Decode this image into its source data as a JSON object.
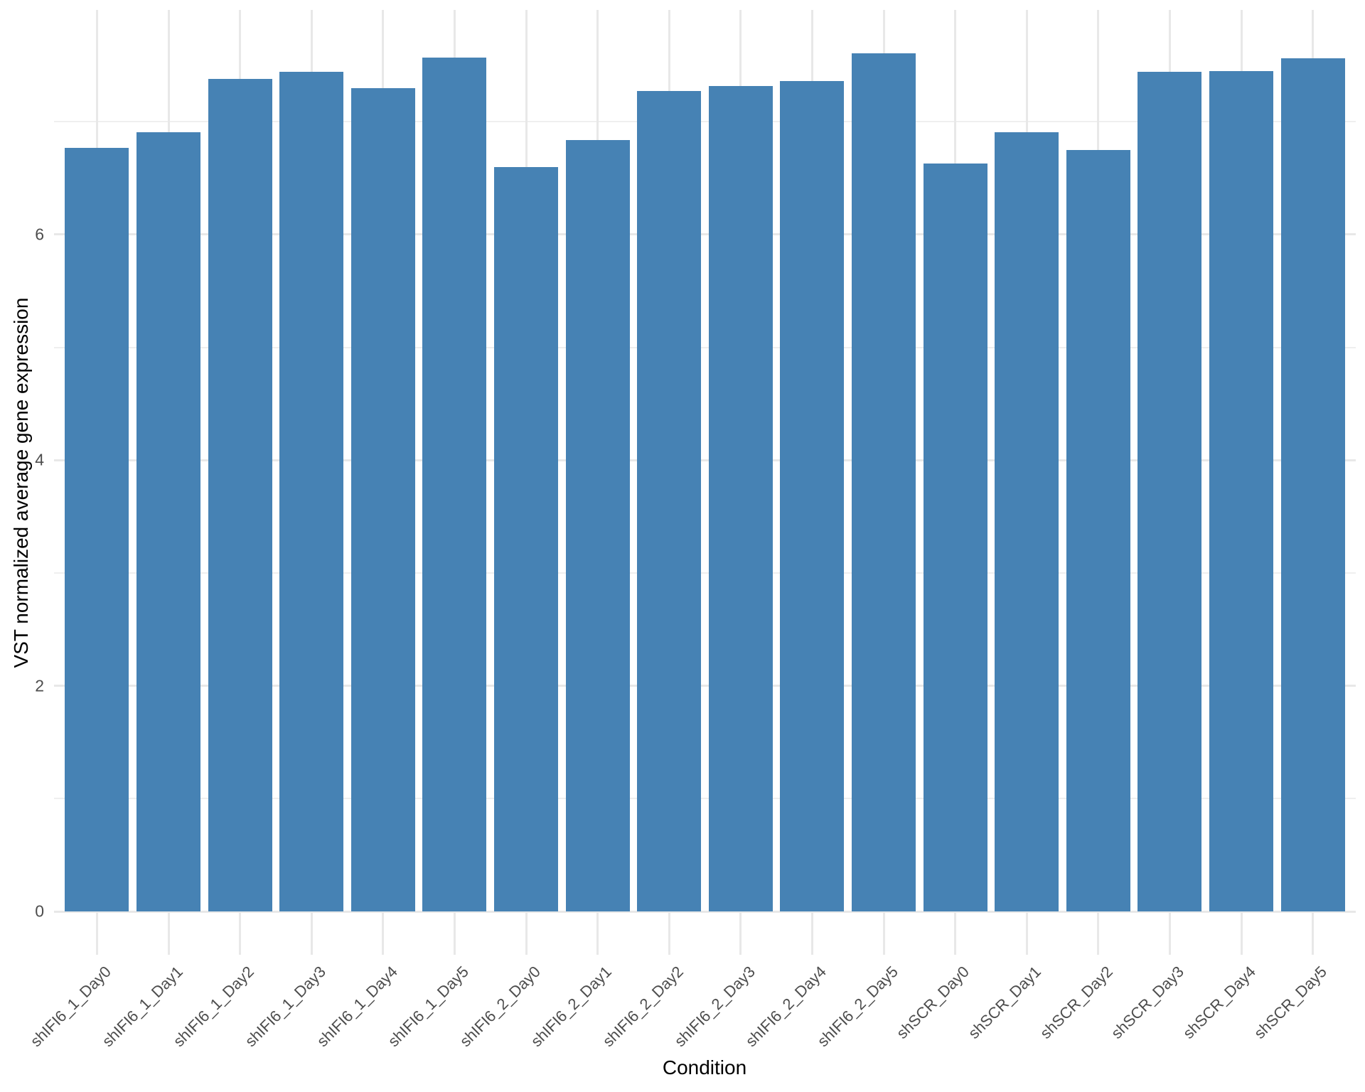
{
  "chart_data": {
    "type": "bar",
    "title": "",
    "xlabel": "Condition",
    "ylabel": "VST normalized average gene expression",
    "categories": [
      "shIFI6_1_Day0",
      "shIFI6_1_Day1",
      "shIFI6_1_Day2",
      "shIFI6_1_Day3",
      "shIFI6_1_Day4",
      "shIFI6_1_Day5",
      "shIFI6_2_Day0",
      "shIFI6_2_Day1",
      "shIFI6_2_Day2",
      "shIFI6_2_Day3",
      "shIFI6_2_Day4",
      "shIFI6_2_Day5",
      "shSCR_Day0",
      "shSCR_Day1",
      "shSCR_Day2",
      "shSCR_Day3",
      "shSCR_Day4",
      "shSCR_Day5"
    ],
    "values": [
      6.77,
      6.91,
      7.38,
      7.44,
      7.3,
      7.57,
      6.6,
      6.84,
      7.27,
      7.32,
      7.36,
      7.61,
      6.63,
      6.91,
      6.75,
      7.44,
      7.45,
      7.56
    ],
    "ylim": [
      0,
      8.0
    ],
    "yticks_major": [
      0,
      2,
      4,
      6
    ],
    "yticks_minor": [
      1,
      3,
      5,
      7
    ],
    "grid": true,
    "legend_position": "none",
    "bar_color": "#4682B4",
    "gridline_color": "#e8e8e8",
    "tick_label_color": "#4d4d4d",
    "axis_title_color": "#000000"
  }
}
